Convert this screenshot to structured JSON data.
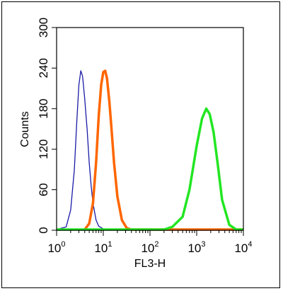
{
  "chart_data": {
    "type": "line",
    "title": "",
    "xlabel": "FL3-H",
    "ylabel": "Counts",
    "x_scale": "log",
    "xlim": [
      1,
      10000
    ],
    "ylim": [
      0,
      300
    ],
    "x_ticks": [
      {
        "base": "10",
        "exp": "0"
      },
      {
        "base": "10",
        "exp": "1"
      },
      {
        "base": "10",
        "exp": "2"
      },
      {
        "base": "10",
        "exp": "3"
      },
      {
        "base": "10",
        "exp": "4"
      }
    ],
    "y_ticks": [
      "0",
      "60",
      "120",
      "180",
      "240",
      "300"
    ],
    "grid": false,
    "legend": "none",
    "series": [
      {
        "color": "#1a1aa6",
        "stroke_style": "thin",
        "x": [
          1.0,
          1.6,
          2.0,
          2.4,
          2.7,
          3.0,
          3.3,
          3.6,
          4.0,
          4.5,
          5.0,
          5.5,
          6.0,
          7.0,
          8.0,
          10.0,
          15.0
        ],
        "y": [
          0,
          5,
          30,
          90,
          160,
          215,
          236,
          228,
          195,
          150,
          100,
          65,
          40,
          15,
          6,
          2,
          0
        ]
      },
      {
        "color": "#ff6600",
        "stroke_style": "thick",
        "x": [
          4.0,
          5.0,
          6.0,
          7.0,
          8.0,
          9.0,
          10.0,
          11.0,
          12.0,
          13.5,
          15.0,
          17.0,
          20.0,
          25.0,
          32.0,
          40.0,
          10000
        ],
        "y": [
          0,
          10,
          40,
          100,
          170,
          215,
          234,
          236,
          225,
          190,
          150,
          100,
          50,
          15,
          3,
          0,
          0
        ]
      },
      {
        "color": "#22e622",
        "stroke_style": "thick",
        "x": [
          1.0,
          100,
          200,
          300,
          500,
          700,
          1000,
          1300,
          1600,
          1900,
          2300,
          2800,
          3500,
          5000,
          7000,
          10000
        ],
        "y": [
          0,
          0,
          1,
          5,
          20,
          60,
          125,
          165,
          180,
          172,
          145,
          100,
          45,
          8,
          1,
          0
        ]
      }
    ]
  }
}
